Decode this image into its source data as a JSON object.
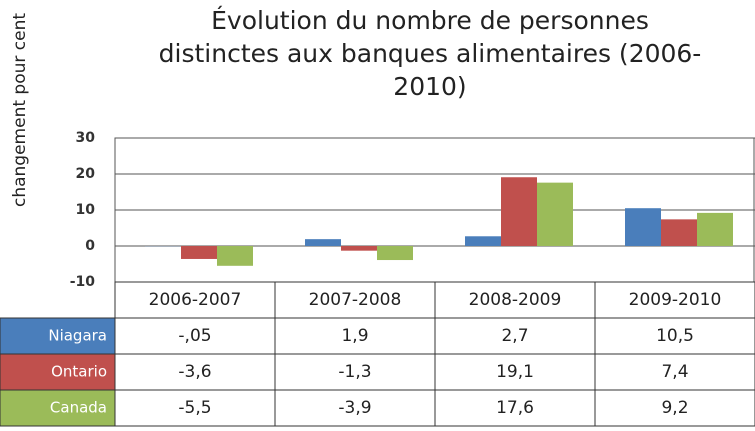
{
  "chart_data": {
    "type": "bar",
    "title": "Évolution du nombre de personnes distinctes aux banques alimentaires (2006-2010)",
    "y_label": "changement pour cent",
    "categories": [
      "2006-2007",
      "2007-2008",
      "2008-2009",
      "2009-2010"
    ],
    "series": [
      {
        "name": "Niagara",
        "color": "#4a7ebb",
        "values": [
          -0.05,
          1.9,
          2.7,
          10.5
        ],
        "value_labels": [
          "-,05",
          "1,9",
          "2,7",
          "10,5"
        ]
      },
      {
        "name": "Ontario",
        "color": "#c0504d",
        "values": [
          -3.6,
          -1.3,
          19.1,
          7.4
        ],
        "value_labels": [
          "-3,6",
          "-1,3",
          "19,1",
          "7,4"
        ]
      },
      {
        "name": "Canada",
        "color": "#9bbb59",
        "values": [
          -5.5,
          -3.9,
          17.6,
          9.2
        ],
        "value_labels": [
          "-5,5",
          "-3,9",
          "17,6",
          "9,2"
        ]
      }
    ],
    "ylim": [
      -10,
      30
    ],
    "yticks": [
      -10,
      0,
      10,
      20,
      30
    ],
    "grid": true
  }
}
